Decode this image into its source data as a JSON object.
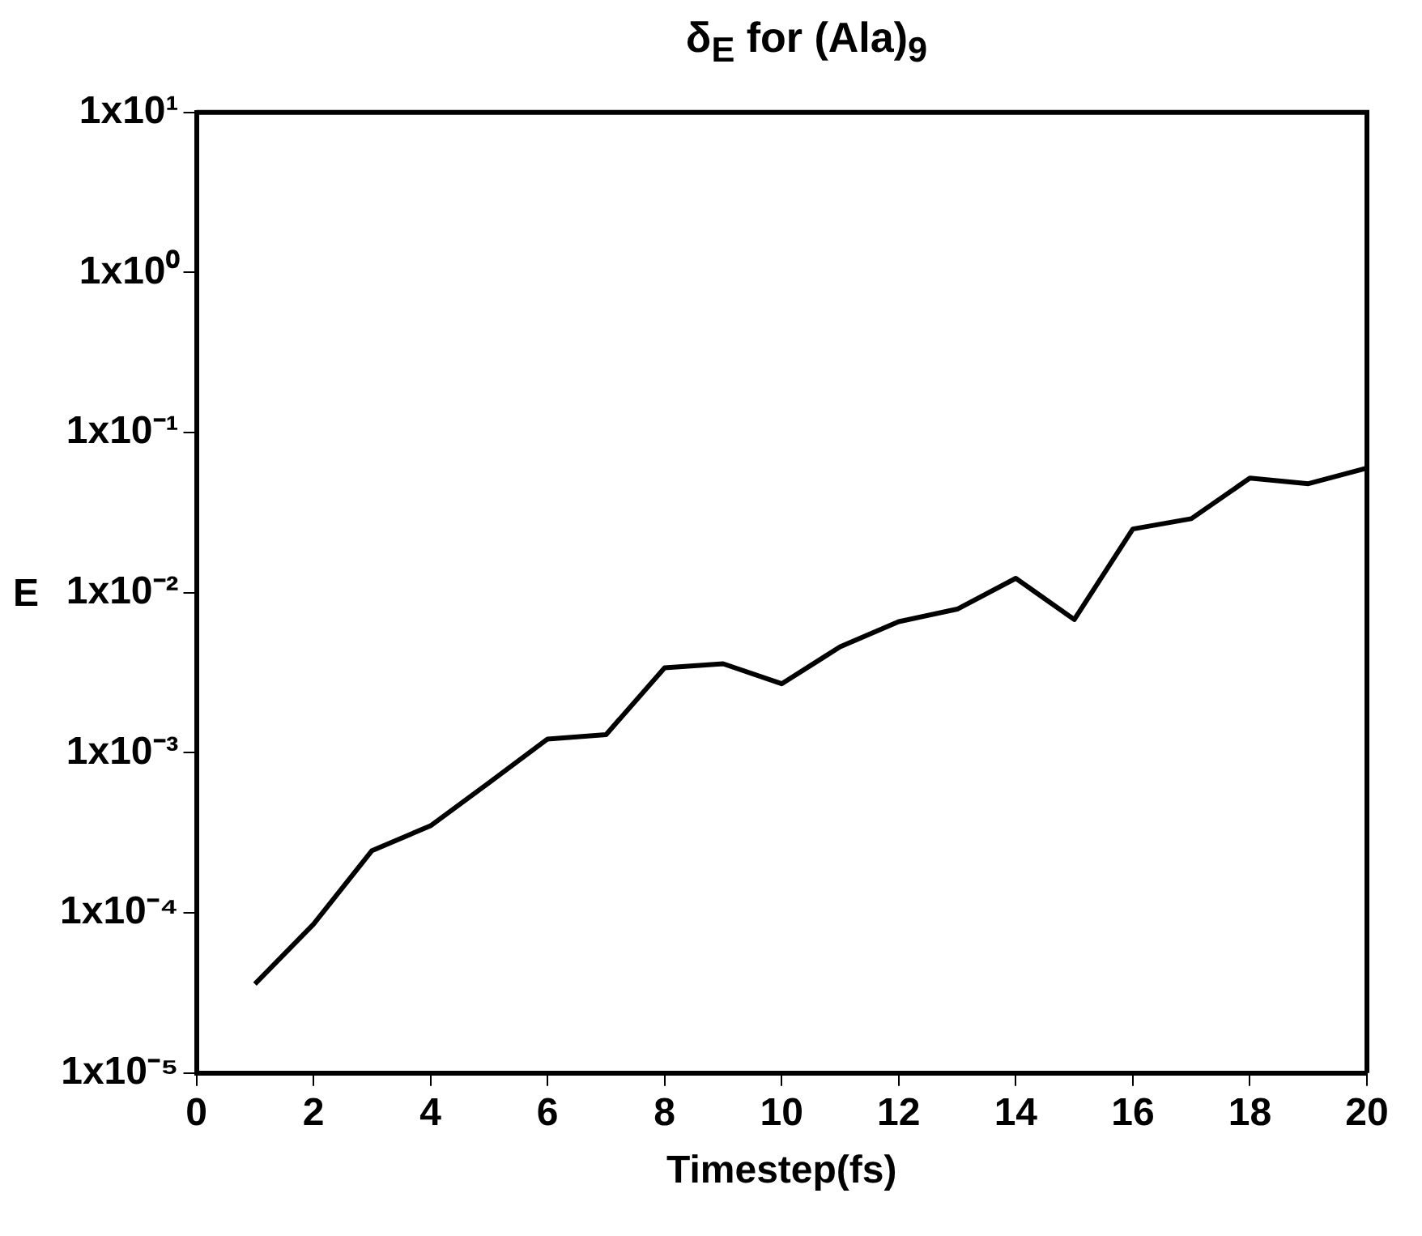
{
  "chart_data": {
    "type": "line",
    "title": "δ$_{E}$ for (Ala)$_{9}$",
    "xlabel": "Timestep(fs)",
    "ylabel": "E",
    "x": [
      1,
      2,
      3,
      4,
      5,
      6,
      7,
      8,
      9,
      10,
      11,
      12,
      13,
      14,
      15,
      16,
      17,
      18,
      19,
      20
    ],
    "series": [
      {
        "color": "#000000",
        "values": [
          3.6e-05,
          8.5e-05,
          0.000245,
          0.00035,
          0.00065,
          0.00122,
          0.0013,
          0.0034,
          0.0036,
          0.0027,
          0.0046,
          0.0066,
          0.0079,
          0.0123,
          0.0068,
          0.025,
          0.029,
          0.052,
          0.048,
          0.06
        ]
      }
    ],
    "xlim": [
      0,
      20
    ],
    "xticks": [
      0,
      2,
      4,
      6,
      8,
      10,
      12,
      14,
      16,
      18,
      20
    ],
    "ylim": [
      1e-05,
      10
    ],
    "log": true,
    "yticks": [
      {
        "value": 1e-05,
        "label": "1x10⁻⁵"
      },
      {
        "value": 0.0001,
        "label": "1x10⁻⁴"
      },
      {
        "value": 0.001,
        "label": "1x10⁻³"
      },
      {
        "value": 0.01,
        "label": "1x10⁻²"
      },
      {
        "value": 0.1,
        "label": "1x10⁻¹"
      },
      {
        "value": 1,
        "label": "1x10⁰"
      },
      {
        "value": 10,
        "label": "1x10¹"
      }
    ],
    "grid": false,
    "legend": false,
    "marker": "none",
    "line_style": "solid"
  }
}
